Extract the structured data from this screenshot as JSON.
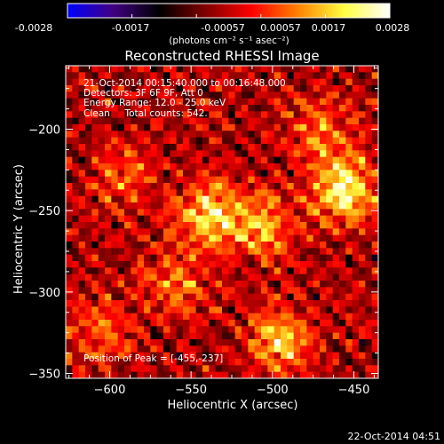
{
  "colorbar": {
    "min": -0.0028,
    "max": 0.0028,
    "tick_labels": [
      "-0.0028",
      "-0.0017",
      "-0.00057",
      "0.00057",
      "0.0017",
      "0.0028"
    ],
    "units_label": "(photons cm⁻² s⁻¹ asec⁻²)",
    "colormap": "rhessi-color-table-5",
    "colormap_stops": [
      "#0000ff",
      "#400080",
      "#000000",
      "#800000",
      "#ff0000",
      "#ff8000",
      "#ffff40",
      "#ffffff"
    ]
  },
  "chart_data": {
    "type": "heatmap",
    "title": "Reconstructed RHESSI Image",
    "xlabel": "Heliocentric X (arcsec)",
    "ylabel": "Heliocentric Y (arcsec)",
    "xlim": [
      -627,
      -435
    ],
    "ylim": [
      -353,
      -161
    ],
    "x_ticks": [
      -600,
      -550,
      -500,
      -450
    ],
    "y_ticks": [
      -200,
      -250,
      -300,
      -350
    ],
    "x_tick_labels": [
      "−600",
      "−550",
      "−500",
      "−450"
    ],
    "y_tick_labels": [
      "−200",
      "−250",
      "−300",
      "−350"
    ],
    "pixel_grid": [
      48,
      48
    ],
    "annotations": [
      "21-Oct-2014 00:15:40.000 to 00:16:48.000",
      "Detectors: 3F 6F 9F, Att 0",
      "Energy Range: 12.0 - 25.0 keV",
      "Clean     Total counts: 542."
    ],
    "peak_label": "Position of Peak = [-455,-237]",
    "peak": {
      "x": -455,
      "y": -237
    },
    "bright_regions": [
      {
        "x": -455,
        "y": -237,
        "strength": 1.0
      },
      {
        "x": -538,
        "y": -253,
        "strength": 0.85
      },
      {
        "x": -505,
        "y": -260,
        "strength": 0.6
      },
      {
        "x": -495,
        "y": -330,
        "strength": 0.75
      },
      {
        "x": -560,
        "y": -295,
        "strength": 0.5
      },
      {
        "x": -605,
        "y": -325,
        "strength": 0.45
      },
      {
        "x": -470,
        "y": -200,
        "strength": 0.5
      },
      {
        "x": -590,
        "y": -230,
        "strength": 0.4
      }
    ]
  },
  "footer": {
    "timestamp": "22-Oct-2014 04:51"
  }
}
